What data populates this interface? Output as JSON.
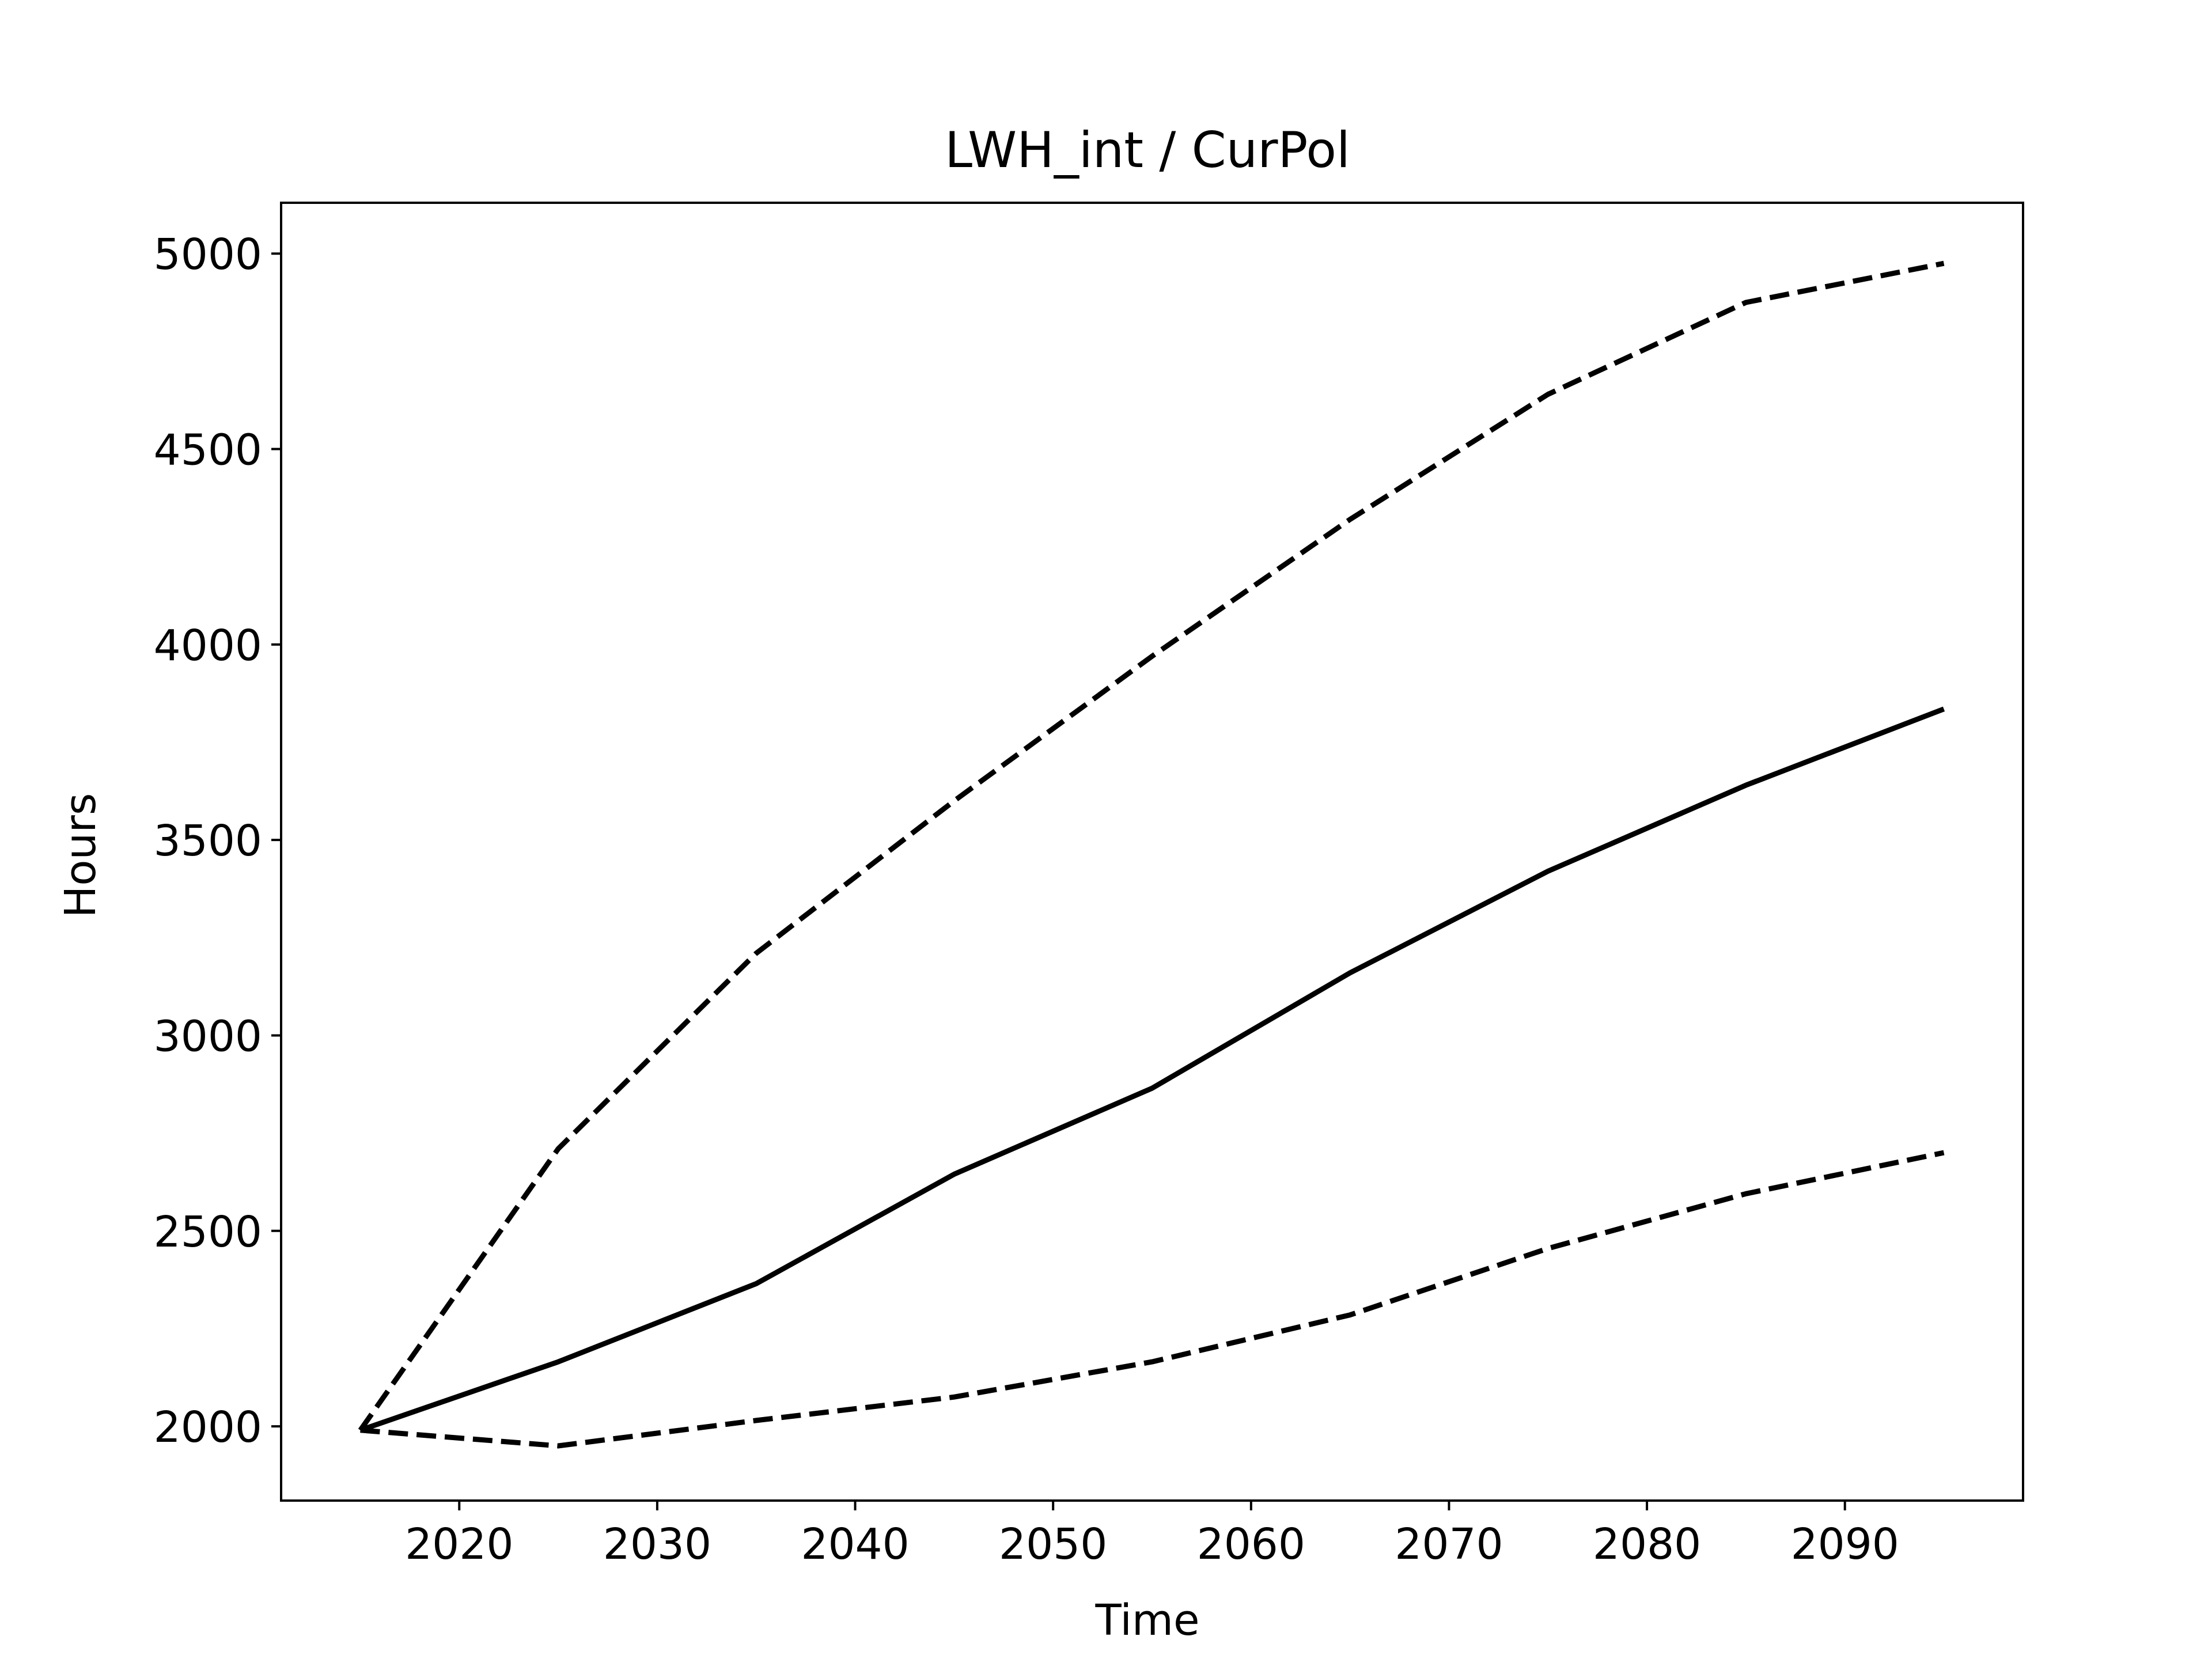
{
  "chart_data": {
    "type": "line",
    "title": "LWH_int / CurPol",
    "xlabel": "Time",
    "ylabel": "Hours",
    "x": [
      2015,
      2025,
      2035,
      2045,
      2055,
      2065,
      2075,
      2085,
      2095
    ],
    "xlim": [
      2011,
      2099
    ],
    "ylim": [
      1810,
      5130
    ],
    "x_ticks": [
      2020,
      2030,
      2040,
      2050,
      2060,
      2070,
      2080,
      2090
    ],
    "y_ticks": [
      2000,
      2500,
      3000,
      3500,
      4000,
      4500,
      5000
    ],
    "grid": false,
    "series": [
      {
        "style": "dashed",
        "color": "#000000",
        "values": [
          1990,
          2710,
          3210,
          3600,
          3970,
          4320,
          4640,
          4875,
          4975
        ]
      },
      {
        "style": "solid",
        "color": "#000000",
        "values": [
          1990,
          2165,
          2365,
          2645,
          2865,
          3160,
          3420,
          3640,
          3835
        ]
      },
      {
        "style": "dashed",
        "color": "#000000",
        "values": [
          1990,
          1950,
          2015,
          2075,
          2165,
          2285,
          2455,
          2595,
          2700
        ]
      }
    ]
  }
}
